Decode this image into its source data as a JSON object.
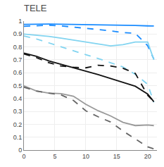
{
  "chart_data": {
    "type": "line",
    "title": "TELE",
    "x": [
      0,
      2,
      4,
      6,
      8,
      10,
      12,
      14,
      16,
      18,
      20,
      21
    ],
    "series": [
      {
        "color": "#1a8cff",
        "line_style": "solid",
        "values": [
          0.975,
          0.977,
          0.977,
          0.976,
          0.975,
          0.974,
          0.972,
          0.97,
          0.968,
          0.966,
          0.963,
          0.962
        ]
      },
      {
        "color": "#1a8cff",
        "line_style": "dashed",
        "values": [
          0.96,
          0.965,
          0.968,
          0.963,
          0.955,
          0.945,
          0.935,
          0.925,
          0.912,
          0.905,
          0.81,
          0.705
        ]
      },
      {
        "color": "#82d4f0",
        "line_style": "solid",
        "values": [
          0.9,
          0.892,
          0.882,
          0.868,
          0.852,
          0.838,
          0.822,
          0.808,
          0.818,
          0.838,
          0.838,
          0.7
        ]
      },
      {
        "color": "#82d4f0",
        "line_style": "dashed",
        "values": [
          0.885,
          0.862,
          0.832,
          0.8,
          0.768,
          0.74,
          0.71,
          0.678,
          0.645,
          0.588,
          0.51,
          0.37
        ]
      },
      {
        "color": "#111111",
        "line_style": "solid",
        "values": [
          0.752,
          0.728,
          0.692,
          0.665,
          0.64,
          0.615,
          0.585,
          0.555,
          0.525,
          0.495,
          0.435,
          0.375
        ]
      },
      {
        "color": "#111111",
        "line_style": "dashed",
        "values": [
          0.745,
          0.718,
          0.678,
          0.652,
          0.642,
          0.638,
          0.658,
          0.652,
          0.635,
          0.595,
          0.425,
          0.375
        ]
      },
      {
        "color": "#999999",
        "line_style": "solid",
        "values": [
          0.498,
          0.458,
          0.442,
          0.438,
          0.418,
          0.355,
          0.305,
          0.265,
          0.215,
          0.19,
          0.195,
          0.19
        ]
      },
      {
        "color": "#666666",
        "line_style": "dashed",
        "values": [
          0.488,
          0.458,
          0.442,
          0.428,
          0.385,
          0.305,
          0.258,
          0.218,
          0.148,
          0.088,
          0.025,
          0.01
        ]
      }
    ],
    "xlim": [
      0,
      21.5
    ],
    "xticks": [
      0,
      5,
      10,
      15,
      20
    ],
    "ylim": [
      0,
      1.0
    ],
    "yticks": [
      0,
      0.1,
      0.2,
      0.3,
      0.4,
      0.5,
      0.6,
      0.7,
      0.8,
      0.9,
      1
    ],
    "grid": true
  }
}
